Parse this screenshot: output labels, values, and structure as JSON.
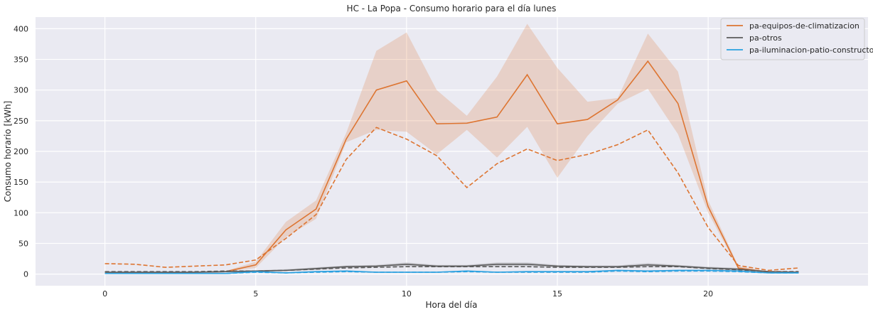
{
  "chart_data": {
    "type": "line",
    "title": "HC - La Popa - Consumo horario para el día lunes",
    "xlabel": "Hora del día",
    "ylabel": "Consumo horario [kWh]",
    "xlim": [
      -2.3,
      25.3
    ],
    "ylim": [
      -19,
      419
    ],
    "xticks": [
      0,
      5,
      10,
      15,
      20
    ],
    "yticks": [
      0,
      50,
      100,
      150,
      200,
      250,
      300,
      350,
      400
    ],
    "grid": true,
    "legend_position": "top-right",
    "x": [
      0,
      1,
      2,
      3,
      4,
      5,
      6,
      7,
      8,
      9,
      10,
      11,
      12,
      13,
      14,
      15,
      16,
      17,
      18,
      19,
      20,
      21,
      22,
      23
    ],
    "series": [
      {
        "name": "pa-equipos-de-climatizacion",
        "color": "#dd7532",
        "values": [
          2,
          2,
          2,
          3,
          4,
          15,
          72,
          106,
          220,
          300,
          315,
          245,
          246,
          256,
          325,
          245,
          252,
          284,
          347,
          278,
          110,
          10,
          3,
          3
        ],
        "band_low": [
          2,
          2,
          2,
          3,
          4,
          10,
          60,
          90,
          215,
          235,
          232,
          195,
          235,
          190,
          240,
          157,
          225,
          278,
          302,
          228,
          100,
          8,
          2,
          2
        ],
        "band_high": [
          3,
          3,
          3,
          4,
          5,
          20,
          85,
          120,
          230,
          364,
          394,
          300,
          258,
          322,
          408,
          336,
          281,
          287,
          392,
          330,
          120,
          13,
          4,
          4
        ],
        "reference": [
          17,
          16,
          11,
          13,
          15,
          23,
          58,
          97,
          187,
          239,
          220,
          193,
          141,
          180,
          204,
          185,
          195,
          211,
          235,
          165,
          76,
          14,
          6,
          10
        ]
      },
      {
        "name": "pa-otros",
        "color": "#5b5b5b",
        "values": [
          3,
          3,
          3,
          3,
          4,
          5,
          6,
          9,
          12,
          13,
          16,
          13,
          13,
          16,
          16,
          13,
          12,
          12,
          15,
          13,
          10,
          8,
          4,
          3
        ],
        "band_low": [
          2,
          2,
          2,
          2,
          3,
          4,
          5,
          7,
          10,
          11,
          13,
          11,
          11,
          13,
          13,
          11,
          10,
          10,
          12,
          11,
          8,
          6,
          3,
          2
        ],
        "band_high": [
          4,
          4,
          4,
          4,
          5,
          6,
          8,
          11,
          14,
          15,
          19,
          15,
          15,
          19,
          19,
          15,
          14,
          14,
          18,
          15,
          12,
          10,
          5,
          4
        ],
        "reference": [
          4,
          4,
          4,
          4,
          5,
          5,
          6,
          8,
          10,
          11,
          12,
          12,
          12,
          12,
          12,
          11,
          11,
          11,
          12,
          12,
          9,
          7,
          4,
          4
        ]
      },
      {
        "name": "pa-iluminacion-patio-constructor",
        "color": "#29a0e0",
        "values": [
          1,
          1,
          1,
          1,
          1,
          4,
          2,
          4,
          5,
          3,
          3,
          3,
          5,
          3,
          4,
          4,
          4,
          6,
          5,
          6,
          6,
          5,
          2,
          2
        ],
        "band_low": [
          0,
          0,
          0,
          0,
          0,
          3,
          1,
          3,
          4,
          2,
          2,
          2,
          4,
          2,
          3,
          3,
          3,
          5,
          4,
          5,
          5,
          4,
          1,
          1
        ],
        "band_high": [
          2,
          2,
          2,
          2,
          2,
          5,
          3,
          5,
          6,
          4,
          4,
          4,
          6,
          4,
          5,
          5,
          5,
          7,
          6,
          7,
          7,
          6,
          3,
          3
        ],
        "reference": [
          1,
          1,
          1,
          1,
          1,
          3,
          2,
          3,
          4,
          3,
          3,
          3,
          4,
          3,
          3,
          3,
          3,
          5,
          4,
          5,
          5,
          4,
          2,
          2
        ]
      }
    ]
  }
}
